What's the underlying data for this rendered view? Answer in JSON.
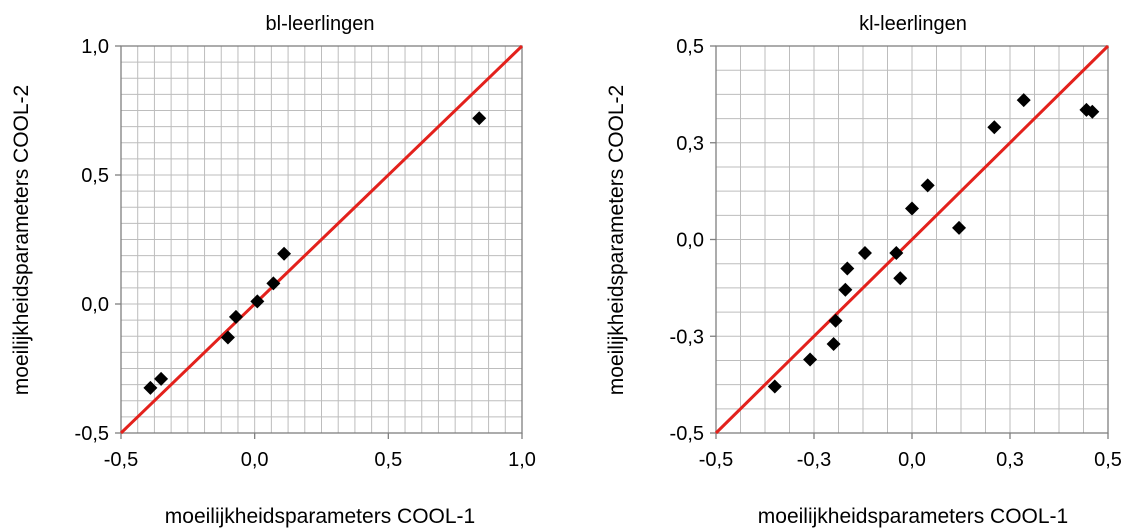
{
  "chart_data": [
    {
      "type": "scatter",
      "title": "bl-leerlingen",
      "xlabel": "moeilijkheidsparameters COOL-1",
      "ylabel": "moeilijkheidsparameters COOL-2",
      "xlim": [
        -0.5,
        1.0
      ],
      "ylim": [
        -0.5,
        1.0
      ],
      "xticks": [
        "-0,5",
        "0,0",
        "0,5",
        "1,0"
      ],
      "yticks": [
        "-0,5",
        "0,0",
        "0,5",
        "1,0"
      ],
      "xtick_values": [
        -0.5,
        0.0,
        0.5,
        1.0
      ],
      "ytick_values": [
        -0.5,
        0.0,
        0.5,
        1.0
      ],
      "minor_grid_step": 0.0625,
      "grid": true,
      "reference_line": {
        "type": "identity",
        "color": "#e3211c"
      },
      "marker_color": "#000000",
      "points": [
        {
          "x": -0.39,
          "y": -0.325
        },
        {
          "x": -0.35,
          "y": -0.29
        },
        {
          "x": -0.1,
          "y": -0.13
        },
        {
          "x": -0.07,
          "y": -0.05
        },
        {
          "x": 0.01,
          "y": 0.01
        },
        {
          "x": 0.07,
          "y": 0.08
        },
        {
          "x": 0.11,
          "y": 0.195
        },
        {
          "x": 0.84,
          "y": 0.72
        }
      ]
    },
    {
      "type": "scatter",
      "title": "kl-leerlingen",
      "xlabel": "moeilijkheidsparameters COOL-1",
      "ylabel": "moeilijkheidsparameters COOL-2",
      "xlim": [
        -0.5,
        0.5
      ],
      "ylim": [
        -0.5,
        0.5
      ],
      "xticks": [
        "-0,5",
        "-0,3",
        "0,0",
        "0,3",
        "0,5"
      ],
      "yticks": [
        "-0,5",
        "-0,3",
        "0,0",
        "0,3",
        "0,5"
      ],
      "xtick_values": [
        -0.5,
        -0.25,
        0.0,
        0.25,
        0.5
      ],
      "ytick_values": [
        -0.5,
        -0.25,
        0.0,
        0.25,
        0.5
      ],
      "minor_grid_step": 0.0625,
      "grid": true,
      "reference_line": {
        "type": "identity",
        "color": "#e3211c"
      },
      "marker_color": "#000000",
      "points": [
        {
          "x": -0.35,
          "y": -0.38
        },
        {
          "x": -0.26,
          "y": -0.31
        },
        {
          "x": -0.2,
          "y": -0.27
        },
        {
          "x": -0.195,
          "y": -0.21
        },
        {
          "x": -0.17,
          "y": -0.13
        },
        {
          "x": -0.165,
          "y": -0.075
        },
        {
          "x": -0.12,
          "y": -0.035
        },
        {
          "x": -0.04,
          "y": -0.035
        },
        {
          "x": -0.03,
          "y": -0.1
        },
        {
          "x": 0.0,
          "y": 0.08
        },
        {
          "x": 0.04,
          "y": 0.14
        },
        {
          "x": 0.12,
          "y": 0.03
        },
        {
          "x": 0.21,
          "y": 0.29
        },
        {
          "x": 0.285,
          "y": 0.36
        },
        {
          "x": 0.445,
          "y": 0.335
        },
        {
          "x": 0.46,
          "y": 0.33
        }
      ]
    }
  ]
}
